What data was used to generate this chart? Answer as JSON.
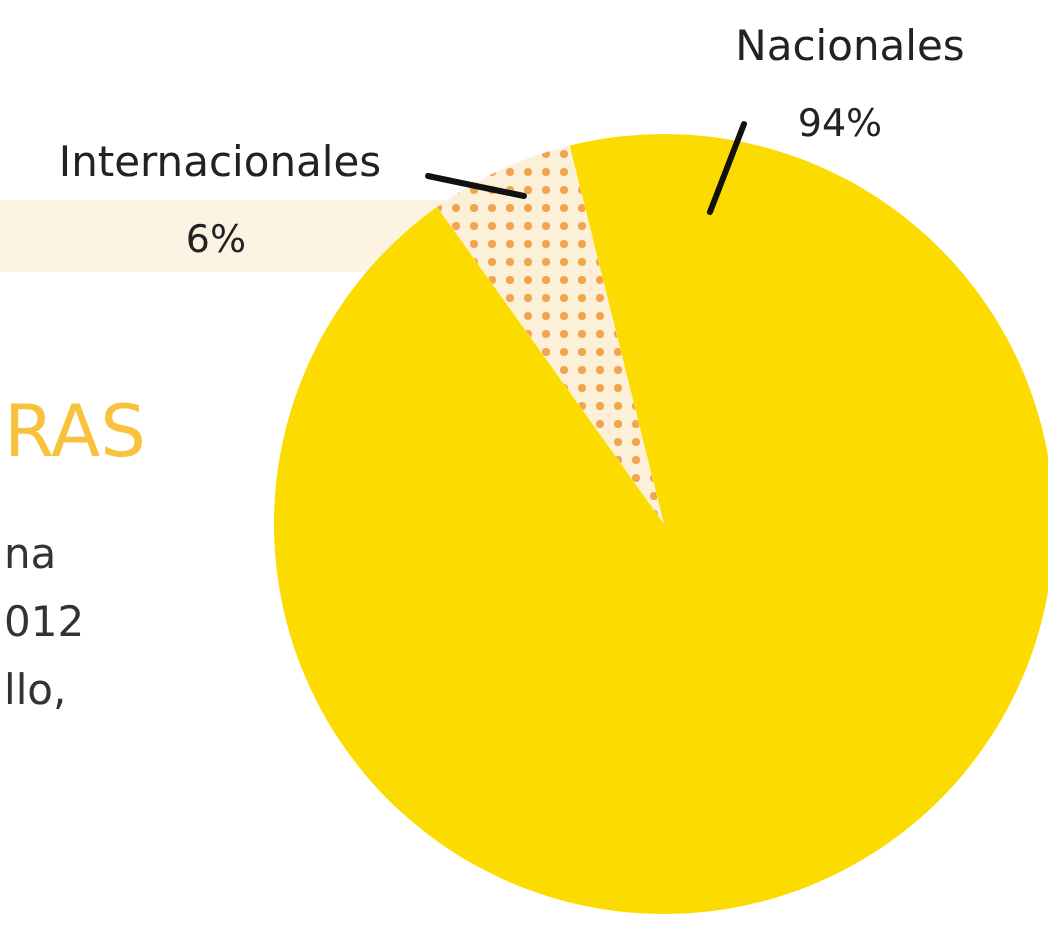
{
  "chart_data": {
    "type": "pie",
    "categories": [
      "Internacionales",
      "Nacionales"
    ],
    "values": [
      6,
      94
    ],
    "colors": [
      "#fdf0d8",
      "#fcdc00"
    ],
    "value_labels": [
      "6%",
      "94%"
    ],
    "annotations": [
      "RAS",
      "na",
      "012",
      "llo,"
    ]
  }
}
